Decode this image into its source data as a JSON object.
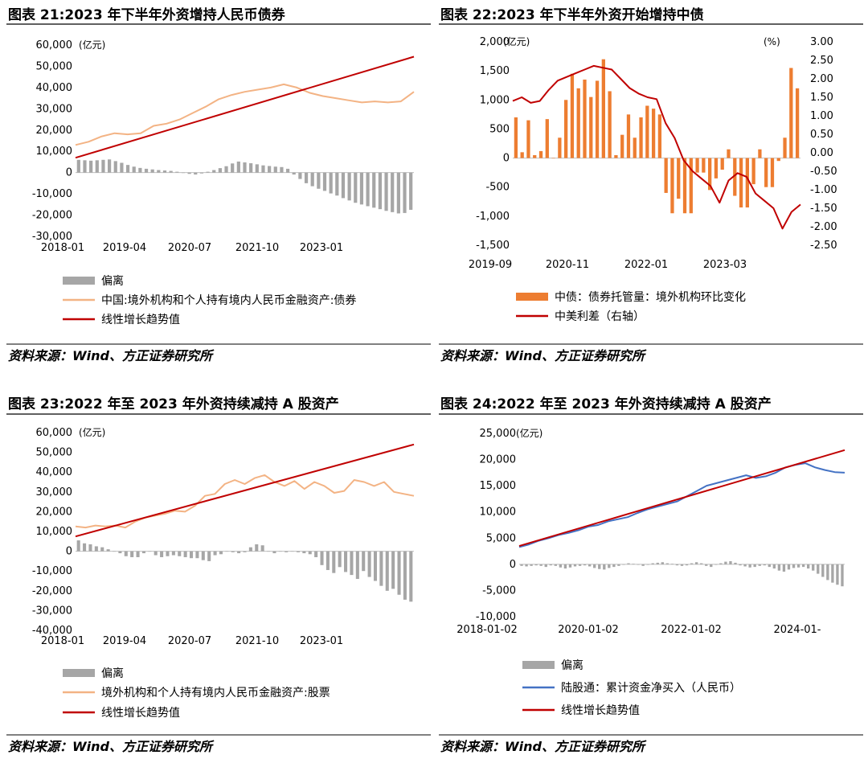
{
  "chart_data": [
    {
      "type": "bar",
      "title": "图表 21:2023 年下半年外资增持人民币债券",
      "unit": "(亿元)",
      "source": "资料来源：Wind、方正证券研究所",
      "x_labels": [
        "2018-01",
        "2019-04",
        "2020-07",
        "2021-10",
        "2023-01"
      ],
      "y_ticks": [
        "60,000",
        "50,000",
        "40,000",
        "30,000",
        "20,000",
        "10,000",
        "0",
        "-10,000",
        "-20,000",
        "-30,000"
      ],
      "ylim": [
        -30000,
        60000
      ],
      "legend": [
        "偏离",
        "中国:境外机构和个人持有境内人民币金融资产:债券",
        "线性增长趋势值"
      ],
      "series": [
        {
          "name": "偏离",
          "kind": "bar",
          "values": [
            6000,
            5800,
            5600,
            5800,
            6000,
            6200,
            5400,
            4600,
            3600,
            2800,
            2200,
            1800,
            1500,
            1200,
            1000,
            800,
            400,
            -200,
            -600,
            -900,
            -400,
            400,
            1200,
            2100,
            3000,
            4300,
            5200,
            4800,
            4400,
            3900,
            3400,
            3100,
            2800,
            2600,
            1800,
            -900,
            -3000,
            -5000,
            -6400,
            -7600,
            -8600,
            -9800,
            -10800,
            -12000,
            -13100,
            -14200,
            -15000,
            -15800,
            -16500,
            -17200,
            -18000,
            -18600,
            -19200,
            -19000,
            -17500
          ]
        },
        {
          "name": "中国:境外机构和个人持有境内人民币金融资产:债券",
          "kind": "line",
          "values": [
            13000,
            14500,
            17000,
            18500,
            18000,
            18500,
            22000,
            23000,
            25000,
            28000,
            31000,
            34500,
            36500,
            38000,
            39000,
            40000,
            41500,
            40000,
            37500,
            36000,
            35000,
            34000,
            33000,
            33500,
            33000,
            33500,
            38000
          ]
        },
        {
          "name": "线性增长趋势值",
          "kind": "line",
          "values": [
            7000,
            54500
          ]
        }
      ]
    },
    {
      "type": "bar",
      "title": "图表 22:2023 年下半年外资开始增持中债",
      "unit_left": "(亿元)",
      "unit_right": "(%)",
      "source": "资料来源：Wind、方正证券研究所",
      "x_labels": [
        "2019-09",
        "2020-11",
        "2022-01",
        "2023-03"
      ],
      "y_ticks": [
        "2,000",
        "1,500",
        "1,000",
        "500",
        "0",
        "-500",
        "-1,000",
        "-1,500"
      ],
      "y2_ticks": [
        "3.00",
        "2.50",
        "2.00",
        "1.50",
        "1.00",
        "0.50",
        "0.00",
        "-0.50",
        "-1.00",
        "-1.50",
        "-2.00",
        "-2.50"
      ],
      "ylim": [
        -1500,
        2000
      ],
      "y2lim": [
        -2.5,
        3.0
      ],
      "legend": [
        "中债：债券托管量：境外机构环比变化",
        "中美利差（右轴）"
      ],
      "series": [
        {
          "name": "中债：债券托管量：境外机构环比变化",
          "kind": "bar",
          "values": [
            700,
            100,
            650,
            50,
            120,
            670,
            0,
            350,
            1000,
            1450,
            1200,
            1350,
            1050,
            1330,
            1700,
            1150,
            50,
            400,
            750,
            350,
            700,
            900,
            850,
            750,
            -600,
            -950,
            -700,
            -950,
            -950,
            -250,
            -250,
            -550,
            -350,
            -200,
            150,
            -650,
            -850,
            -850,
            -450,
            150,
            -500,
            -500,
            -50,
            350,
            1550,
            1200
          ]
        },
        {
          "name": "中美利差（右轴）",
          "kind": "line",
          "values": [
            1.4,
            1.5,
            1.35,
            1.4,
            1.7,
            1.95,
            2.05,
            2.15,
            2.25,
            2.35,
            2.3,
            2.25,
            2.0,
            1.75,
            1.6,
            1.5,
            1.45,
            0.8,
            0.4,
            -0.2,
            -0.5,
            -0.7,
            -0.9,
            -1.35,
            -0.75,
            -0.55,
            -0.65,
            -1.1,
            -1.3,
            -1.5,
            -2.05,
            -1.6,
            -1.4
          ]
        }
      ]
    },
    {
      "type": "bar",
      "title": "图表 23:2022 年至 2023 年外资持续减持 A 股资产",
      "unit": "(亿元)",
      "source": "资料来源：Wind、方正证券研究所",
      "x_labels": [
        "2018-01",
        "2019-04",
        "2020-07",
        "2021-10",
        "2023-01"
      ],
      "y_ticks": [
        "60,000",
        "50,000",
        "40,000",
        "30,000",
        "20,000",
        "10,000",
        "0",
        "-10,000",
        "-20,000",
        "-30,000",
        "-40,000"
      ],
      "ylim": [
        -40000,
        60000
      ],
      "legend": [
        "偏离",
        "境外机构和个人持有境内人民币金融资产:股票",
        "线性增长趋势值"
      ],
      "series": [
        {
          "name": "偏离",
          "kind": "bar",
          "values": [
            5500,
            4000,
            3500,
            2500,
            2000,
            1000,
            0,
            -1000,
            -2500,
            -3000,
            -3000,
            -1000,
            0,
            -2000,
            -3000,
            -2500,
            -2000,
            -2500,
            -3000,
            -3500,
            -3500,
            -4500,
            -5000,
            -2000,
            -1500,
            0,
            -500,
            -1000,
            -500,
            2000,
            3500,
            3000,
            0,
            -1000,
            0,
            -500,
            0,
            -500,
            -1000,
            -1500,
            -3000,
            -7000,
            -9500,
            -11000,
            -8000,
            -10500,
            -12000,
            -14000,
            -10000,
            -13000,
            -15000,
            -17500,
            -20000,
            -19000,
            -22000,
            -24500,
            -25500
          ]
        },
        {
          "name": "境外机构和个人持有境内人民币金融资产:股票",
          "kind": "line",
          "values": [
            12500,
            12000,
            13000,
            12500,
            13000,
            12000,
            15000,
            17000,
            18000,
            19000,
            20500,
            20000,
            23000,
            28000,
            29000,
            34000,
            36000,
            34000,
            37000,
            38500,
            35000,
            33000,
            35500,
            31500,
            35000,
            33000,
            29500,
            30500,
            36000,
            35000,
            33000,
            35000,
            30000,
            29000,
            28000
          ]
        },
        {
          "name": "线性增长趋势值",
          "kind": "line",
          "values": [
            7500,
            54000
          ]
        }
      ]
    },
    {
      "type": "line",
      "title": "图表 24:2022 年至 2023 年外资持续减持 A 股资产",
      "unit": "(亿元)",
      "source": "资料来源：Wind、方正证券研究所",
      "x_labels": [
        "2018-01-02",
        "2020-01-02",
        "2022-01-02",
        "2024-01-"
      ],
      "y_ticks": [
        "25,000",
        "20,000",
        "15,000",
        "10,000",
        "5,000",
        "0",
        "-5,000",
        "-10,000"
      ],
      "ylim": [
        -10000,
        25000
      ],
      "legend": [
        "偏离",
        "陆股通：累计资金净买入（人民币）",
        "线性增长趋势值"
      ],
      "series": [
        {
          "name": "偏离",
          "kind": "bar",
          "values": [
            -300,
            -400,
            -300,
            -200,
            -300,
            -500,
            -200,
            -300,
            -600,
            -800,
            -600,
            -400,
            -300,
            -200,
            -400,
            -700,
            -900,
            -1000,
            -700,
            -500,
            -300,
            -100,
            200,
            100,
            -100,
            -300,
            -100,
            200,
            300,
            400,
            200,
            100,
            -200,
            -300,
            -200,
            200,
            400,
            200,
            -300,
            -500,
            -100,
            200,
            500,
            600,
            300,
            -200,
            -400,
            -600,
            -500,
            -300,
            -200,
            -500,
            -800,
            -1200,
            -1400,
            -1000,
            -700,
            -600,
            -500,
            -800,
            -1200,
            -1800,
            -2400,
            -3000,
            -3500,
            -3900,
            -4200
          ]
        },
        {
          "name": "陆股通：累计资金净买入（人民币）",
          "kind": "line",
          "values": [
            3300,
            3800,
            4500,
            5000,
            5600,
            6000,
            6500,
            7200,
            7500,
            8200,
            8600,
            9000,
            9800,
            10500,
            11000,
            11500,
            12000,
            13000,
            14000,
            15000,
            15500,
            16000,
            16500,
            17000,
            16500,
            16800,
            17500,
            18500,
            19000,
            19300,
            18500,
            18000,
            17600,
            17500
          ]
        },
        {
          "name": "线性增长趋势值",
          "kind": "line",
          "values": [
            3500,
            21800
          ]
        }
      ]
    }
  ],
  "colors": {
    "gray": "#a6a6a6",
    "peach": "#f3b384",
    "red": "#c00000",
    "orange": "#ed7d31",
    "blue": "#4472c4"
  }
}
